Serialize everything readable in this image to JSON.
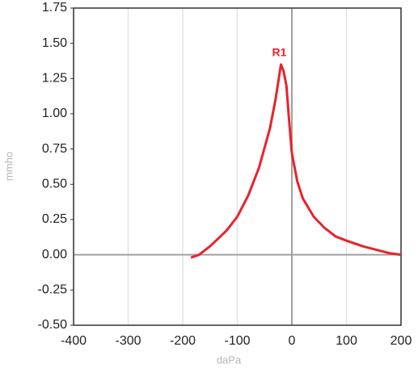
{
  "chart_data": {
    "type": "line",
    "x_label": "daPa",
    "y_label": "mmho",
    "xlim": [
      -400,
      200
    ],
    "xticks": [
      -400,
      -300,
      -200,
      -100,
      0,
      100,
      200
    ],
    "ylim": [
      -0.5,
      1.75
    ],
    "yticks": [
      {
        "value": -0.5,
        "label": "-0.50"
      },
      -0.25,
      {
        "value": 0,
        "label": "0.00"
      },
      0.25,
      {
        "value": 0.5,
        "label": "0.50"
      },
      0.75,
      {
        "value": 1,
        "label": "1.00"
      },
      1.25,
      {
        "value": 1.5,
        "label": "1.50"
      },
      1.75
    ],
    "grid": "x",
    "series": [
      {
        "name": "R1",
        "color": "#e8232b",
        "x": [
          -185,
          -170,
          -150,
          -120,
          -100,
          -80,
          -60,
          -40,
          -30,
          -20,
          -15,
          -10,
          -5,
          0,
          10,
          20,
          40,
          60,
          80,
          100,
          130,
          160,
          180,
          200
        ],
        "values": [
          -0.02,
          0.0,
          0.06,
          0.17,
          0.27,
          0.42,
          0.62,
          0.9,
          1.1,
          1.35,
          1.3,
          1.2,
          0.95,
          0.72,
          0.52,
          0.4,
          0.27,
          0.19,
          0.13,
          0.1,
          0.06,
          0.03,
          0.01,
          0.0
        ]
      }
    ],
    "annotations": [
      {
        "text": "R1",
        "x": -20,
        "y": 1.35
      }
    ]
  }
}
